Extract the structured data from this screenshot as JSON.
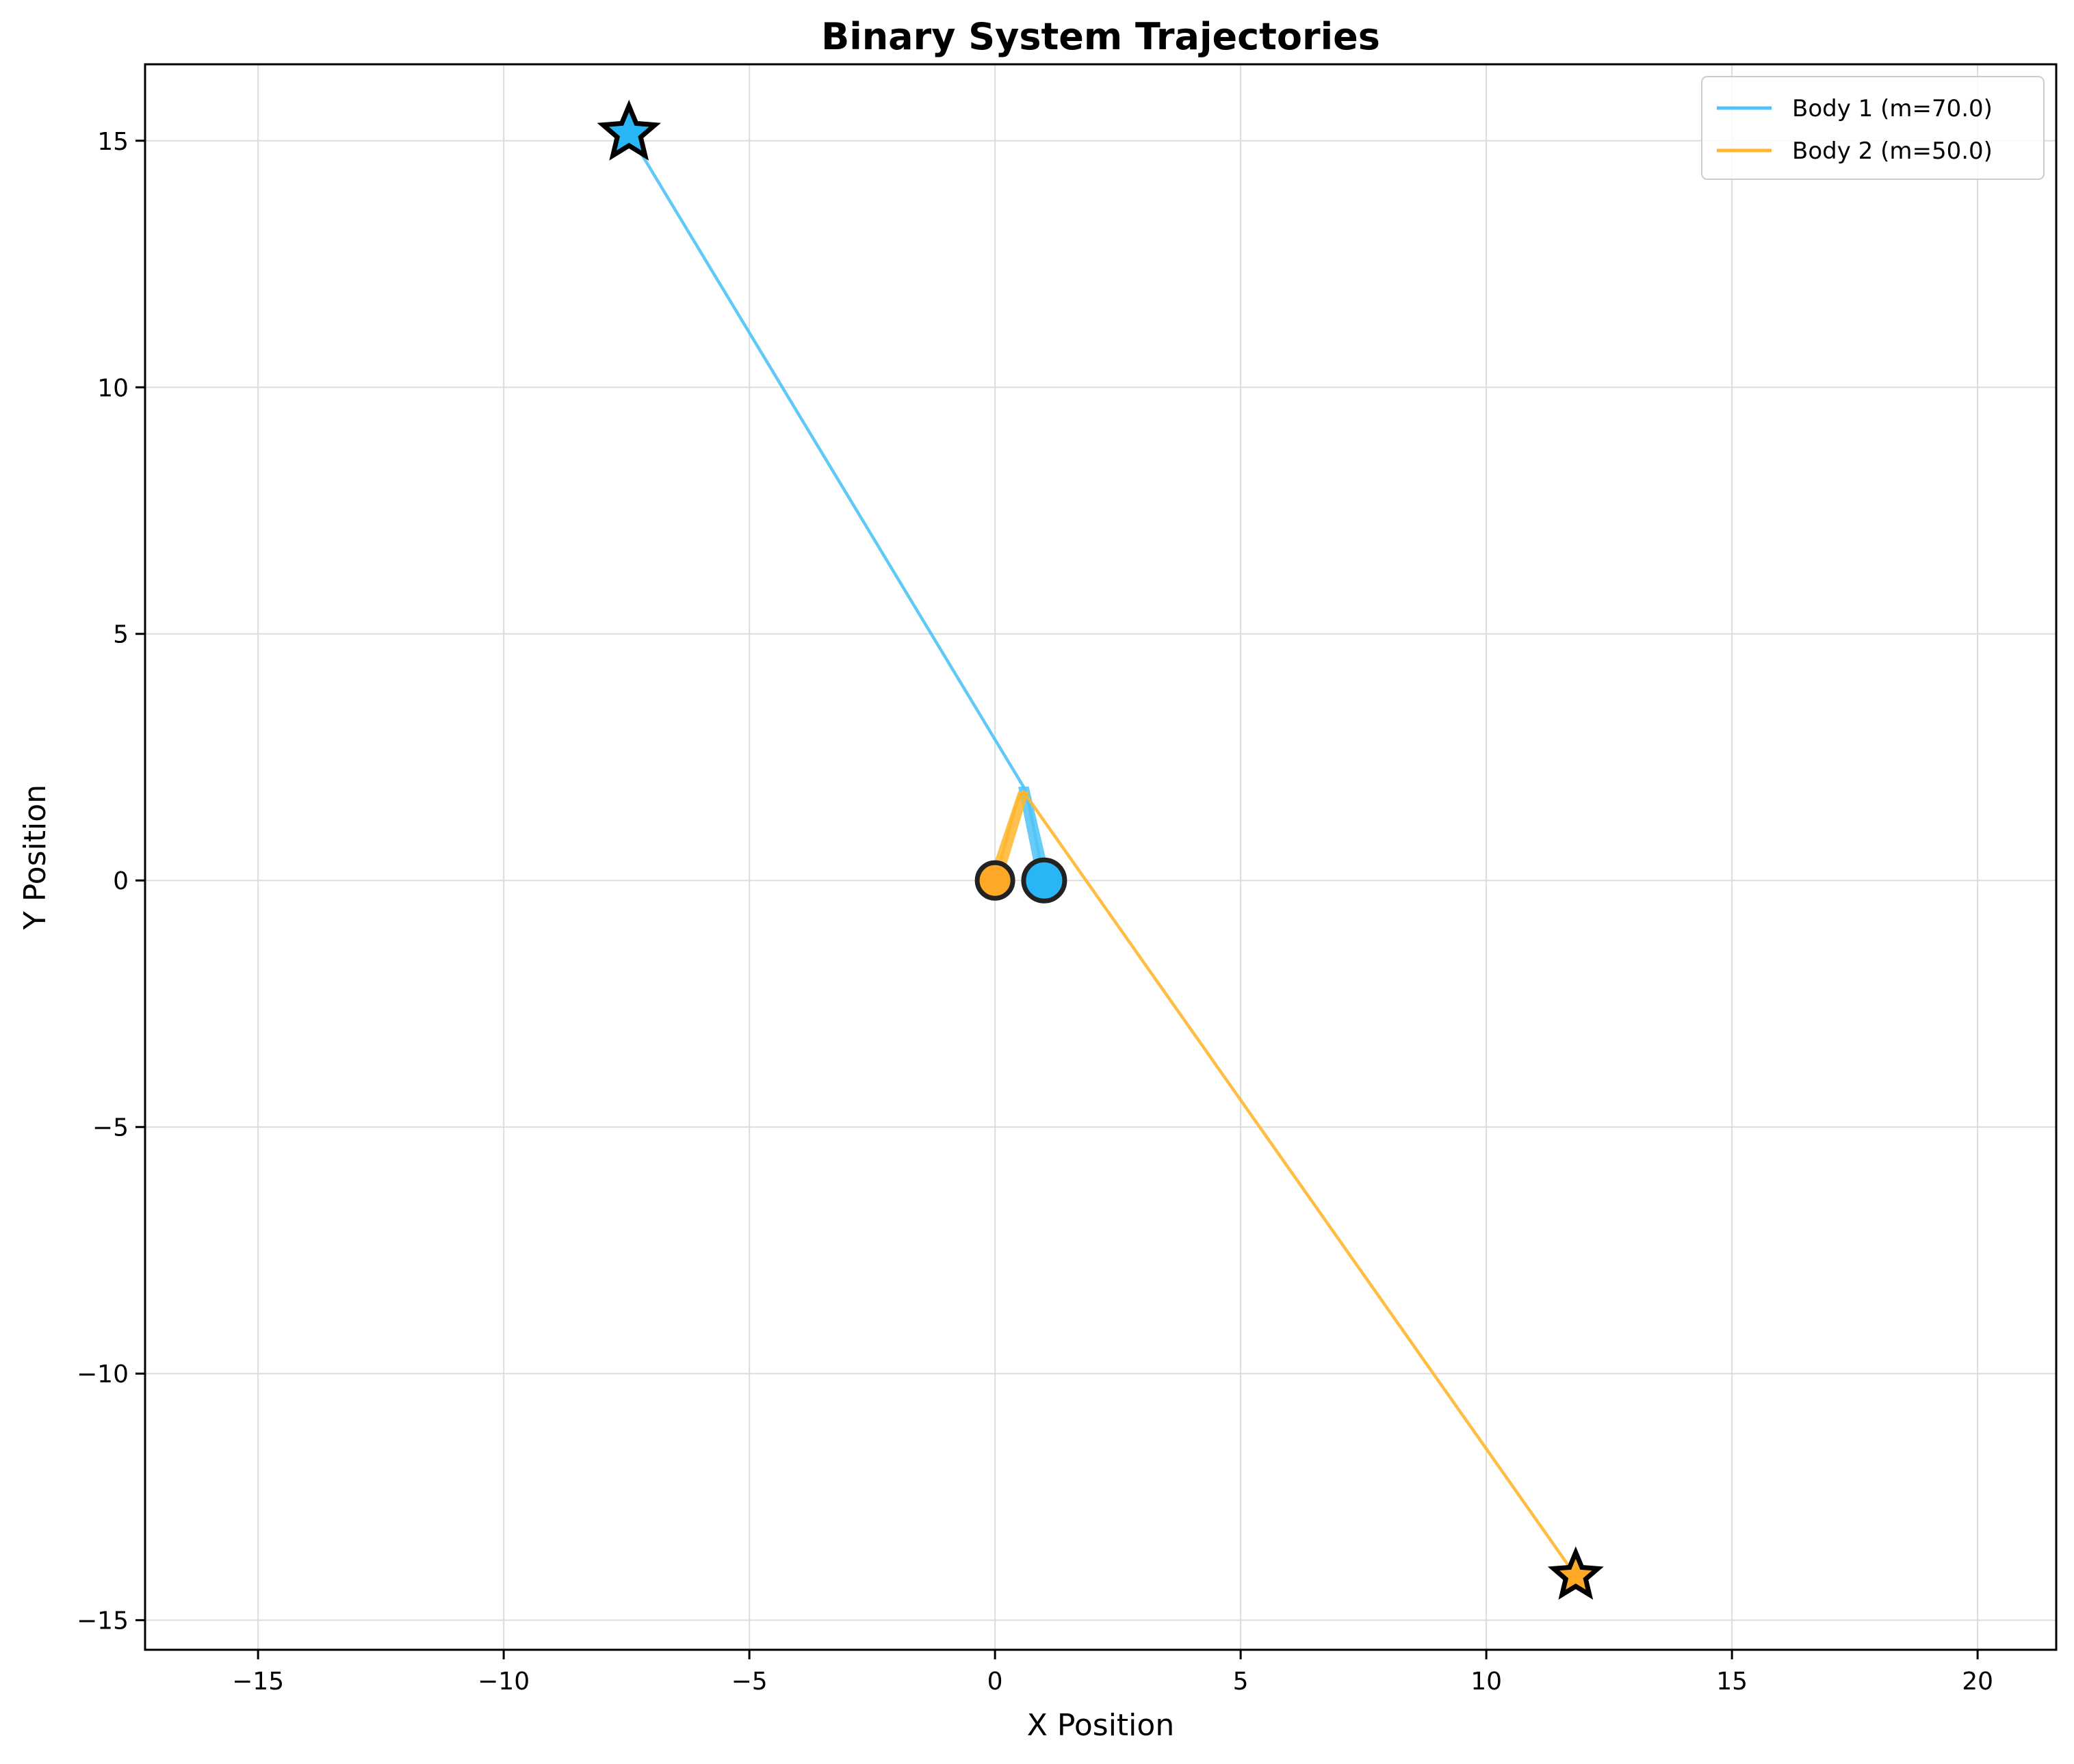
{
  "chart_data": {
    "type": "line",
    "title": "Binary System Trajectories",
    "xlabel": "X Position",
    "ylabel": "Y Position",
    "xlim": [
      -17.3,
      21.6
    ],
    "ylim": [
      -15.6,
      16.55
    ],
    "xticks": [
      -15,
      -10,
      -5,
      0,
      5,
      10,
      15,
      20
    ],
    "yticks": [
      -15,
      -10,
      -5,
      0,
      5,
      10,
      15
    ],
    "xtick_labels": [
      "−15",
      "−10",
      "−5",
      "0",
      "5",
      "10",
      "15",
      "20"
    ],
    "ytick_labels": [
      "−15",
      "−10",
      "−5",
      "0",
      "5",
      "10",
      "15"
    ],
    "grid": true,
    "legend_position": "top-right",
    "series": [
      {
        "name": "Body 1 (m=70.0)",
        "color": "#4fc3f7",
        "start_marker": "circle",
        "end_marker": "star",
        "x": [
          1.0,
          0.95,
          0.88,
          0.8,
          0.72,
          0.65,
          0.58,
          -7.45
        ],
        "y": [
          0.0,
          0.25,
          0.6,
          1.0,
          1.4,
          1.7,
          1.9,
          15.15
        ]
      },
      {
        "name": "Body 2 (m=50.0)",
        "color": "#ffb62e",
        "start_marker": "circle",
        "end_marker": "star",
        "x": [
          0.0,
          0.07,
          0.17,
          0.28,
          0.39,
          0.49,
          0.58,
          11.82
        ],
        "y": [
          0.0,
          0.25,
          0.6,
          1.0,
          1.4,
          1.7,
          1.8,
          -14.1
        ]
      }
    ]
  }
}
